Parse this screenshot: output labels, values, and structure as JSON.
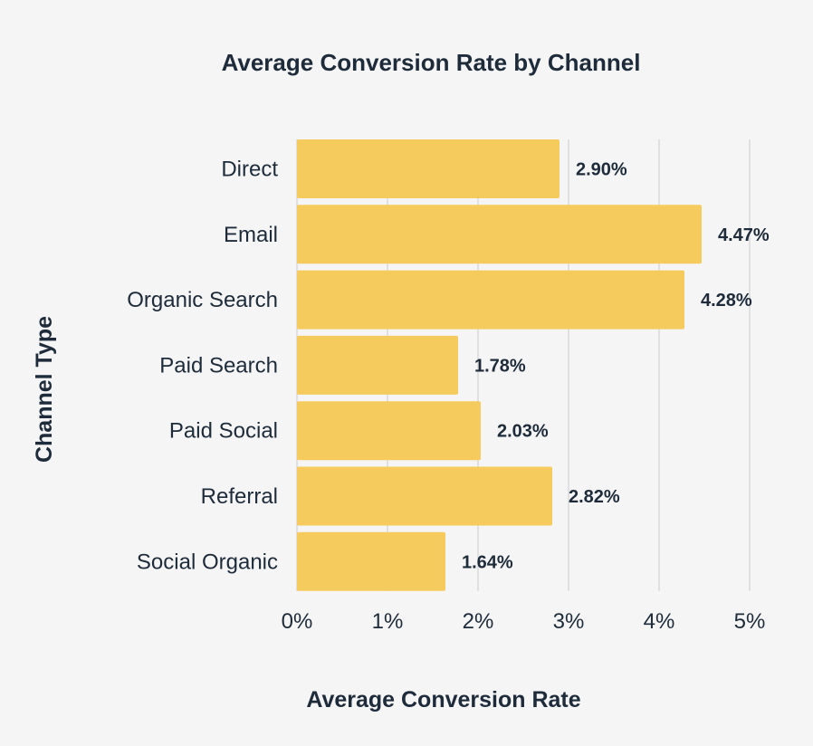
{
  "colors": {
    "background": "#f5f5f5",
    "bar": "#f6cb5e",
    "text": "#1d2b3a",
    "grid": "#cccccc"
  },
  "chart_data": {
    "type": "bar",
    "orientation": "horizontal",
    "title": "Average Conversion Rate by Channel",
    "xlabel": "Average Conversion Rate",
    "ylabel": "Channel Type",
    "categories": [
      "Direct",
      "Email",
      "Organic Search",
      "Paid Search",
      "Paid Social",
      "Referral",
      "Social Organic"
    ],
    "values": [
      2.9,
      4.47,
      4.28,
      1.78,
      2.03,
      2.82,
      1.64
    ],
    "value_labels": [
      "2.90%",
      "4.47%",
      "4.28%",
      "1.78%",
      "2.03%",
      "2.82%",
      "1.64%"
    ],
    "xlim": [
      0,
      5
    ],
    "xticks": [
      0,
      1,
      2,
      3,
      4,
      5
    ],
    "xtick_labels": [
      "0%",
      "1%",
      "2%",
      "3%",
      "4%",
      "5%"
    ],
    "grid": "vertical"
  }
}
